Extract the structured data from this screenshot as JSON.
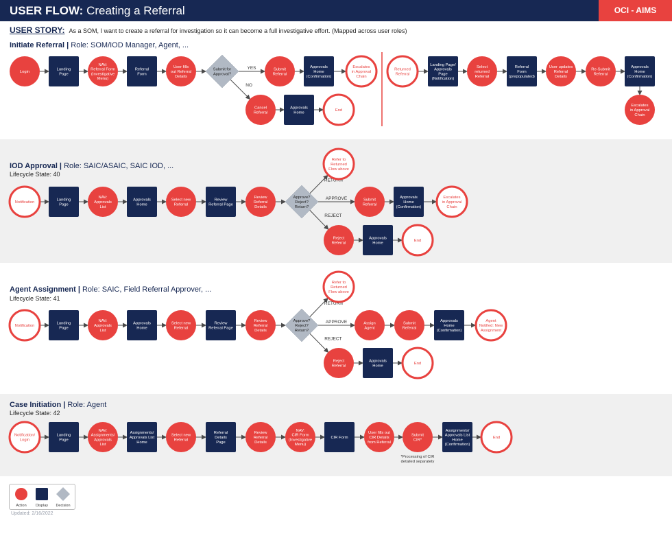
{
  "header": {
    "title_bold": "USER FLOW:",
    "title_rest": "Creating a Referral",
    "brand": "OCI - AIMS"
  },
  "story": {
    "label": "USER STORY:",
    "text": "As a SOM, I want to create a referral for investigation so it can become a full investigative effort. (Mapped across user roles)"
  },
  "colors": {
    "action": "#e8423f",
    "display": "#172853",
    "decision": "#b1b9c4",
    "band": "#f0f0f0",
    "arrow": "#4a4a4a"
  },
  "sections": [
    {
      "title_bold": "Initiate Referral |",
      "title_rest": "Role: SOM/IOD Manager, Agent, ...",
      "lifecycle": ""
    },
    {
      "title_bold": "IOD Approval |",
      "title_rest": "Role: SAIC/ASAIC, SAIC IOD, ...",
      "lifecycle": "Lifecycle State: 40"
    },
    {
      "title_bold": "Agent Assignment |",
      "title_rest": "Role: SAIC, Field Referral Approver, ...",
      "lifecycle": "Lifecycle State: 41"
    },
    {
      "title_bold": "Case Initiation |",
      "title_rest": "Role: Agent",
      "lifecycle": "Lifecycle State: 42"
    }
  ],
  "flow": {
    "nodes": [
      {
        "id": "a1",
        "type": "action",
        "lines": [
          "Login"
        ]
      },
      {
        "id": "a2",
        "type": "display",
        "lines": [
          "Landing",
          "Page"
        ]
      },
      {
        "id": "a3",
        "type": "action",
        "lines": [
          "NAV:",
          "Referral Form",
          "(Investigative",
          "Menu)"
        ]
      },
      {
        "id": "a4",
        "type": "display",
        "lines": [
          "Referral",
          "Form"
        ]
      },
      {
        "id": "a5",
        "type": "action",
        "lines": [
          "User fills",
          "out Referral",
          "Details"
        ]
      },
      {
        "id": "a6",
        "type": "decision",
        "lines": [
          "Submit for",
          "Approval?"
        ]
      },
      {
        "id": "a7",
        "type": "action",
        "lines": [
          "Submit",
          "Referral"
        ]
      },
      {
        "id": "a8",
        "type": "display",
        "lines": [
          "Approvals",
          "Home",
          "(Confirmation)"
        ]
      },
      {
        "id": "a9",
        "type": "end",
        "lines": [
          "Escalates",
          "in Approval",
          "Chain"
        ]
      },
      {
        "id": "a10",
        "type": "action",
        "lines": [
          "Cancel",
          "Referral"
        ]
      },
      {
        "id": "a11",
        "type": "display",
        "lines": [
          "Approvals",
          "Home"
        ]
      },
      {
        "id": "a12",
        "type": "end",
        "lines": [
          "End"
        ]
      },
      {
        "id": "r1",
        "type": "end",
        "lines": [
          "Returned",
          "Referral"
        ]
      },
      {
        "id": "r2",
        "type": "display",
        "lines": [
          "Landing Page/",
          "Approvals",
          "Page",
          "(Notification)"
        ]
      },
      {
        "id": "r3",
        "type": "action",
        "lines": [
          "Select",
          "returned",
          "Referral"
        ]
      },
      {
        "id": "r4",
        "type": "display",
        "lines": [
          "Referral",
          "Form",
          "(prepopulated)"
        ]
      },
      {
        "id": "r5",
        "type": "action",
        "lines": [
          "User updates",
          "Referral",
          "Details"
        ]
      },
      {
        "id": "r6",
        "type": "action",
        "lines": [
          "Re-Submit",
          "Referral"
        ]
      },
      {
        "id": "r7",
        "type": "display",
        "lines": [
          "Approvals",
          "Home",
          "(Confirmation)"
        ]
      },
      {
        "id": "r8",
        "type": "action",
        "lines": [
          "Escalates",
          "in Approval",
          "Chain"
        ]
      },
      {
        "id": "b1",
        "type": "end",
        "lines": [
          "Notification"
        ]
      },
      {
        "id": "b2",
        "type": "display",
        "lines": [
          "Landing",
          "Page"
        ]
      },
      {
        "id": "b3",
        "type": "action",
        "lines": [
          "NAV:",
          "Approvals",
          "List"
        ]
      },
      {
        "id": "b4",
        "type": "display",
        "lines": [
          "Approvals",
          "Home"
        ]
      },
      {
        "id": "b5",
        "type": "action",
        "lines": [
          "Select new",
          "Referral"
        ]
      },
      {
        "id": "b6",
        "type": "display",
        "lines": [
          "Review",
          "Referral Page"
        ]
      },
      {
        "id": "b7",
        "type": "action",
        "lines": [
          "Review",
          "Referral",
          "Details"
        ]
      },
      {
        "id": "b8",
        "type": "decision",
        "lines": [
          "Approve?",
          "Reject?",
          "Return?"
        ]
      },
      {
        "id": "b9",
        "type": "end",
        "lines": [
          "Refer to",
          "Returned",
          "Flow above"
        ]
      },
      {
        "id": "b10",
        "type": "action",
        "lines": [
          "Submit",
          "Referral"
        ]
      },
      {
        "id": "b11",
        "type": "display",
        "lines": [
          "Approvals",
          "Home",
          "(Confirmation)"
        ]
      },
      {
        "id": "b12",
        "type": "end",
        "lines": [
          "Escalates",
          "in Approval",
          "Chain"
        ]
      },
      {
        "id": "b13",
        "type": "action",
        "lines": [
          "Reject",
          "Referral"
        ]
      },
      {
        "id": "b14",
        "type": "display",
        "lines": [
          "Approvals",
          "Home"
        ]
      },
      {
        "id": "b15",
        "type": "end",
        "lines": [
          "End"
        ]
      },
      {
        "id": "c1",
        "type": "end",
        "lines": [
          "Notification"
        ]
      },
      {
        "id": "c2",
        "type": "display",
        "lines": [
          "Landing",
          "Page"
        ]
      },
      {
        "id": "c3",
        "type": "action",
        "lines": [
          "NAV:",
          "Approvals",
          "List"
        ]
      },
      {
        "id": "c4",
        "type": "display",
        "lines": [
          "Approvals",
          "Home"
        ]
      },
      {
        "id": "c5",
        "type": "action",
        "lines": [
          "Select new",
          "Referral"
        ]
      },
      {
        "id": "c6",
        "type": "display",
        "lines": [
          "Review",
          "Referral Page"
        ]
      },
      {
        "id": "c7",
        "type": "action",
        "lines": [
          "Review",
          "Referral",
          "Details"
        ]
      },
      {
        "id": "c8",
        "type": "decision",
        "lines": [
          "Approve?",
          "Reject?",
          "Return?"
        ]
      },
      {
        "id": "c9",
        "type": "end",
        "lines": [
          "Refer to",
          "Returned",
          "Flow above"
        ]
      },
      {
        "id": "c10",
        "type": "action",
        "lines": [
          "Assign",
          "Agent"
        ]
      },
      {
        "id": "c11",
        "type": "action",
        "lines": [
          "Submit",
          "Referral"
        ]
      },
      {
        "id": "c12",
        "type": "display",
        "lines": [
          "Approvals",
          "Home",
          "(Confirmation)"
        ]
      },
      {
        "id": "c13",
        "type": "end",
        "lines": [
          "Agent",
          "Notified: New",
          "Assignment"
        ]
      },
      {
        "id": "c14",
        "type": "action",
        "lines": [
          "Reject",
          "Referral"
        ]
      },
      {
        "id": "c15",
        "type": "display",
        "lines": [
          "Approvals",
          "Home"
        ]
      },
      {
        "id": "c16",
        "type": "end",
        "lines": [
          "End"
        ]
      },
      {
        "id": "d1",
        "type": "end",
        "lines": [
          "Notification/",
          "Login"
        ]
      },
      {
        "id": "d2",
        "type": "display",
        "lines": [
          "Landing",
          "Page"
        ]
      },
      {
        "id": "d3",
        "type": "action",
        "lines": [
          "NAV:",
          "Assignments/",
          "Approvals",
          "List"
        ]
      },
      {
        "id": "d4",
        "type": "display",
        "lines": [
          "Assignments/",
          "Approvals List",
          "Home"
        ]
      },
      {
        "id": "d5",
        "type": "action",
        "lines": [
          "Select new",
          "Referral"
        ]
      },
      {
        "id": "d6",
        "type": "display",
        "lines": [
          "Referral",
          "Details",
          "Page"
        ]
      },
      {
        "id": "d7",
        "type": "action",
        "lines": [
          "Review",
          "Referral",
          "Details"
        ]
      },
      {
        "id": "d8",
        "type": "action",
        "lines": [
          "NAV:",
          "CIR Form",
          "(Investigative",
          "Menu)"
        ]
      },
      {
        "id": "d9",
        "type": "display",
        "lines": [
          "CIR Form"
        ]
      },
      {
        "id": "d10",
        "type": "action",
        "lines": [
          "User fills out",
          "CIR Details",
          "from Referral"
        ]
      },
      {
        "id": "d11",
        "type": "action",
        "lines": [
          "Submit",
          "CIR*"
        ]
      },
      {
        "id": "d12",
        "type": "display",
        "lines": [
          "Assignments/",
          "Approvals List",
          "Home",
          "(Confirmation)"
        ]
      },
      {
        "id": "d13",
        "type": "end",
        "lines": [
          "End"
        ]
      }
    ],
    "edges": [
      {
        "from": "a1",
        "to": "a2"
      },
      {
        "from": "a2",
        "to": "a3"
      },
      {
        "from": "a3",
        "to": "a4"
      },
      {
        "from": "a4",
        "to": "a5"
      },
      {
        "from": "a5",
        "to": "a6"
      },
      {
        "from": "a6",
        "to": "a7",
        "label": "YES"
      },
      {
        "from": "a7",
        "to": "a8"
      },
      {
        "from": "a8",
        "to": "a9"
      },
      {
        "from": "a6",
        "to": "a10",
        "label": "NO"
      },
      {
        "from": "a10",
        "to": "a11"
      },
      {
        "from": "a11",
        "to": "a12"
      },
      {
        "from": "r1",
        "to": "r2"
      },
      {
        "from": "r2",
        "to": "r3"
      },
      {
        "from": "r3",
        "to": "r4"
      },
      {
        "from": "r4",
        "to": "r5"
      },
      {
        "from": "r5",
        "to": "r6"
      },
      {
        "from": "r6",
        "to": "r7"
      },
      {
        "from": "r7",
        "to": "r8"
      },
      {
        "from": "b1",
        "to": "b2"
      },
      {
        "from": "b2",
        "to": "b3"
      },
      {
        "from": "b3",
        "to": "b4"
      },
      {
        "from": "b4",
        "to": "b5"
      },
      {
        "from": "b5",
        "to": "b6"
      },
      {
        "from": "b6",
        "to": "b7"
      },
      {
        "from": "b7",
        "to": "b8"
      },
      {
        "from": "b8",
        "to": "b9",
        "label": "RETURN"
      },
      {
        "from": "b8",
        "to": "b10",
        "label": "APPROVE"
      },
      {
        "from": "b10",
        "to": "b11"
      },
      {
        "from": "b11",
        "to": "b12"
      },
      {
        "from": "b8",
        "to": "b13",
        "label": "REJECT"
      },
      {
        "from": "b13",
        "to": "b14"
      },
      {
        "from": "b14",
        "to": "b15"
      },
      {
        "from": "c1",
        "to": "c2"
      },
      {
        "from": "c2",
        "to": "c3"
      },
      {
        "from": "c3",
        "to": "c4"
      },
      {
        "from": "c4",
        "to": "c5"
      },
      {
        "from": "c5",
        "to": "c6"
      },
      {
        "from": "c6",
        "to": "c7"
      },
      {
        "from": "c7",
        "to": "c8"
      },
      {
        "from": "c8",
        "to": "c9",
        "label": "RETURN"
      },
      {
        "from": "c8",
        "to": "c10",
        "label": "APPROVE"
      },
      {
        "from": "c10",
        "to": "c11"
      },
      {
        "from": "c11",
        "to": "c12"
      },
      {
        "from": "c12",
        "to": "c13"
      },
      {
        "from": "c8",
        "to": "c14",
        "label": "REJECT"
      },
      {
        "from": "c14",
        "to": "c15"
      },
      {
        "from": "c15",
        "to": "c16"
      },
      {
        "from": "d1",
        "to": "d2"
      },
      {
        "from": "d2",
        "to": "d3"
      },
      {
        "from": "d3",
        "to": "d4"
      },
      {
        "from": "d4",
        "to": "d5"
      },
      {
        "from": "d5",
        "to": "d6"
      },
      {
        "from": "d6",
        "to": "d7"
      },
      {
        "from": "d7",
        "to": "d8"
      },
      {
        "from": "d8",
        "to": "d9"
      },
      {
        "from": "d9",
        "to": "d10"
      },
      {
        "from": "d10",
        "to": "d11"
      },
      {
        "from": "d11",
        "to": "d12"
      },
      {
        "from": "d12",
        "to": "d13"
      }
    ],
    "notes": [
      {
        "id": "n1",
        "lines": [
          "*Processing of CIR",
          "detailed separately"
        ]
      }
    ]
  },
  "legend": {
    "items": [
      {
        "type": "action",
        "label": "Action"
      },
      {
        "type": "display",
        "label": "Display"
      },
      {
        "type": "decision",
        "label": "Decision"
      }
    ]
  },
  "footer": {
    "updated": "Updated: 2/16/2022"
  }
}
